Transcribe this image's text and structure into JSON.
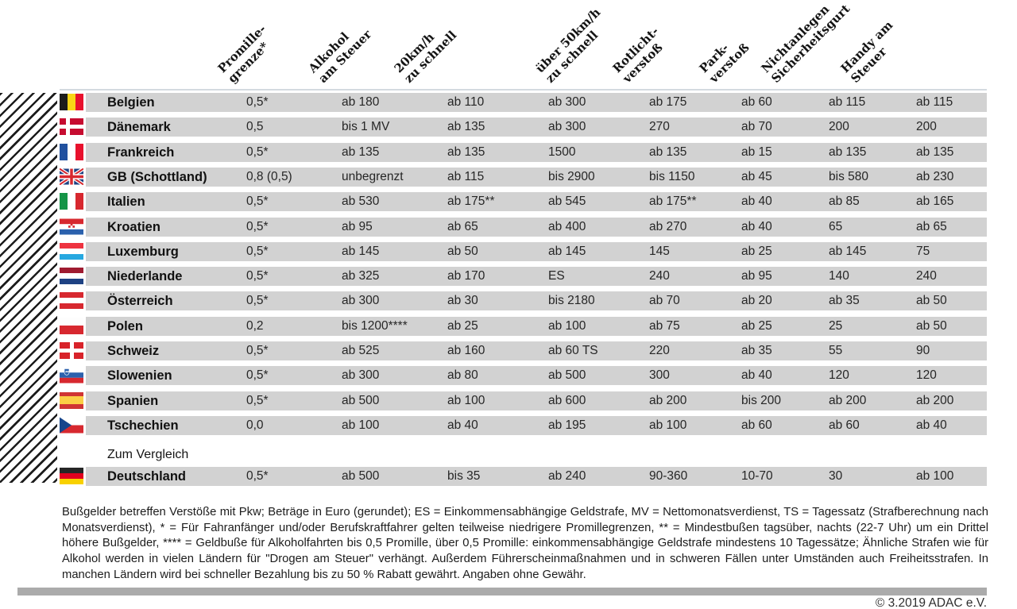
{
  "colors": {
    "row_band": "#d2d2d2",
    "footer_bar": "#ababab",
    "stripe": "#1c1c1c",
    "text": "#1a1a1a"
  },
  "chart_data": {
    "type": "table",
    "unit_note": "Beträge in Euro (gerundet)",
    "columns": [
      {
        "id": "promillegrenze",
        "lines": [
          "Promille-",
          "grenze*"
        ],
        "label": "Promillegrenze*"
      },
      {
        "id": "alkohol-am-steuer",
        "lines": [
          "Alkohol",
          "am Steuer"
        ],
        "label": "Alkohol am Steuer"
      },
      {
        "id": "20kmh-zu-schnell",
        "lines": [
          "20km/h",
          "zu schnell"
        ],
        "label": "20km/h zu schnell"
      },
      {
        "id": "ueber-50kmh-zu-schnell",
        "lines": [
          "über 50km/h",
          "zu schnell"
        ],
        "label": "über 50km/h zu schnell"
      },
      {
        "id": "rotlichtverstoss",
        "lines": [
          "Rotlicht-",
          "verstoß"
        ],
        "label": "Rotlichtverstoß"
      },
      {
        "id": "parkverstoss",
        "lines": [
          "Park-",
          "verstoß"
        ],
        "label": "Parkverstoß"
      },
      {
        "id": "sicherheitsgurt",
        "lines": [
          "Nichtanlegen",
          "Sicherheitsgurt"
        ],
        "label": "Nichtanlegen Sicherheitsgurt"
      },
      {
        "id": "handy-am-steuer",
        "lines": [
          "Handy am",
          "Steuer"
        ],
        "label": "Handy am Steuer"
      }
    ],
    "rows": [
      {
        "country": "Belgien",
        "flag": "be",
        "values": [
          "0,5*",
          "ab 180",
          "ab 110",
          "ab 300",
          "ab 175",
          "ab 60",
          "ab 115",
          "ab 115"
        ]
      },
      {
        "country": "Dänemark",
        "flag": "dk",
        "values": [
          "0,5",
          "bis 1 MV",
          "ab 135",
          "ab 300",
          "270",
          "ab 70",
          "200",
          "200"
        ]
      },
      {
        "country": "Frankreich",
        "flag": "fr",
        "values": [
          "0,5*",
          "ab 135",
          "ab 135",
          "1500",
          "ab 135",
          "ab 15",
          "ab 135",
          "ab 135"
        ]
      },
      {
        "country": "GB (Schottland)",
        "flag": "gb",
        "values": [
          "0,8 (0,5)",
          "unbegrenzt",
          "ab 115",
          "bis 2900",
          "bis 1150",
          "ab 45",
          "bis 580",
          "ab 230"
        ]
      },
      {
        "country": "Italien",
        "flag": "it",
        "values": [
          "0,5*",
          "ab 530",
          "ab 175**",
          "ab 545",
          "ab 175**",
          "ab 40",
          "ab 85",
          "ab 165"
        ]
      },
      {
        "country": "Kroatien",
        "flag": "hr",
        "values": [
          "0,5*",
          "ab 95",
          "ab 65",
          "ab 400",
          "ab 270",
          "ab 40",
          "65",
          "ab 65"
        ]
      },
      {
        "country": "Luxemburg",
        "flag": "lu",
        "values": [
          "0,5*",
          "ab 145",
          "ab 50",
          "ab 145",
          "145",
          "ab 25",
          "ab 145",
          "75"
        ]
      },
      {
        "country": "Niederlande",
        "flag": "nl",
        "values": [
          "0,5*",
          "ab 325",
          "ab 170",
          "ES",
          "240",
          "ab 95",
          "140",
          "240"
        ]
      },
      {
        "country": "Österreich",
        "flag": "at",
        "values": [
          "0,5*",
          "ab 300",
          "ab 30",
          "bis 2180",
          "ab 70",
          "ab 20",
          "ab 35",
          "ab 50"
        ]
      },
      {
        "country": "Polen",
        "flag": "pl",
        "values": [
          "0,2",
          "bis 1200****",
          "ab 25",
          "ab 100",
          "ab 75",
          "ab 25",
          "25",
          "ab 50"
        ]
      },
      {
        "country": "Schweiz",
        "flag": "ch",
        "values": [
          "0,5*",
          "ab 525",
          "ab 160",
          "ab 60 TS",
          "220",
          "ab 35",
          "55",
          "90"
        ]
      },
      {
        "country": "Slowenien",
        "flag": "si",
        "values": [
          "0,5*",
          "ab 300",
          "ab 80",
          "ab 500",
          "300",
          "ab 40",
          "120",
          "120"
        ]
      },
      {
        "country": "Spanien",
        "flag": "es",
        "values": [
          "0,5*",
          "ab 500",
          "ab 100",
          "ab 600",
          "ab 200",
          "bis 200",
          "ab 200",
          "ab 200"
        ]
      },
      {
        "country": "Tschechien",
        "flag": "cz",
        "values": [
          "0,0",
          "ab 100",
          "ab 40",
          "ab 195",
          "ab 100",
          "ab 60",
          "ab 60",
          "ab 40"
        ]
      }
    ],
    "compare_label": "Zum Vergleich",
    "compare_row": {
      "country": "Deutschland",
      "flag": "de",
      "values": [
        "0,5*",
        "ab 500",
        "bis 35",
        "ab 240",
        "90-360",
        "10-70",
        "30",
        "ab 100"
      ]
    }
  },
  "footnote": "Bußgelder betreffen Verstöße mit Pkw; Beträge in Euro (gerundet); ES = Einkommensabhängige Geldstrafe, MV = Nettomonatsverdienst, TS = Tagessatz (Strafberechnung nach Monatsverdienst), * = Für Fahranfänger und/oder Berufskraftfahrer gelten teilweise niedrigere Promillegrenzen, ** = Mindestbußen tagsüber, nachts (22-7 Uhr) um ein Drittel höhere Bußgelder, **** = Geldbuße für Alkoholfahrten bis 0,5 Promille, über 0,5 Promille: einkommensabhängige Geldstrafe mindestens 10 Tagessätze; Ähnliche Strafen wie für Alkohol werden in vielen Ländern für \"Drogen am Steuer\" verhängt. Außerdem Führerscheinmaßnahmen und in schweren Fällen unter Umständen auch Freiheitsstrafen. In manchen Ländern wird bei schneller Bezahlung bis zu 50 % Rabatt gewährt. Angaben ohne Gewähr.",
  "copyright": "© 3.2019 ADAC e.V."
}
